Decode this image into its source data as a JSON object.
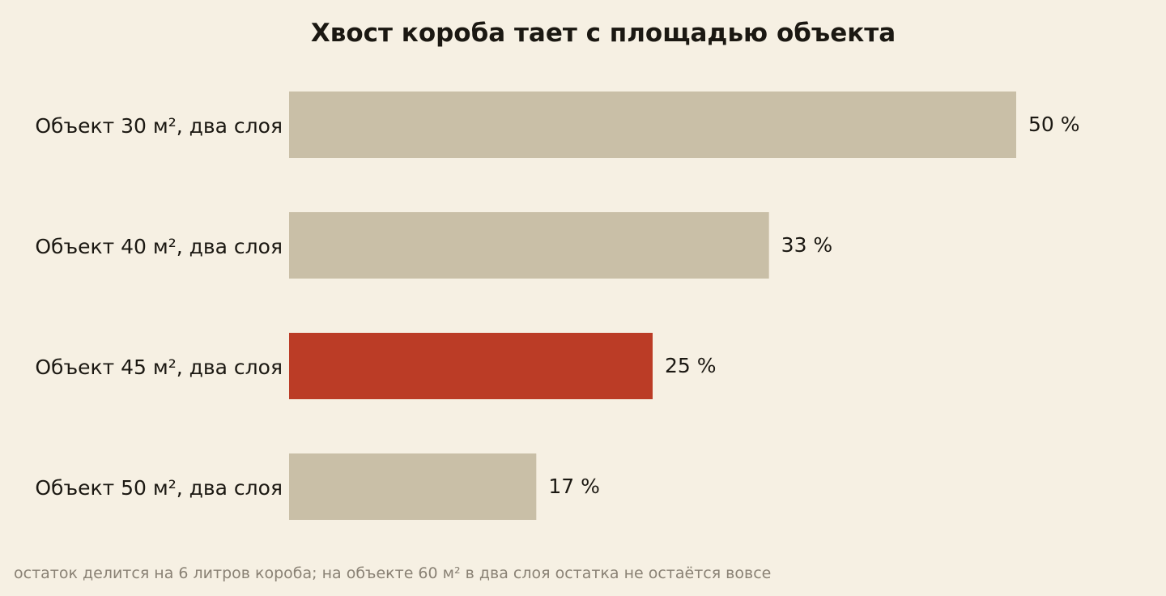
{
  "chart_data": {
    "type": "bar",
    "orientation": "horizontal",
    "title": "Хвост короба тает с площадью объекта",
    "categories": [
      "Объект 30 м², два слоя",
      "Объект 40 м², два слоя",
      "Объект 45 м², два слоя",
      "Объект 50 м², два слоя"
    ],
    "values": [
      50,
      33,
      25,
      17
    ],
    "value_labels": [
      "50 %",
      "33 %",
      "25 %",
      "17 %"
    ],
    "highlight_index": 2,
    "xlim": [
      0,
      50
    ],
    "grid": false,
    "footnote": "остаток делится на 6 литров короба; на объекте 60 м² в два слоя остатка не остаётся вовсе"
  },
  "colors": {
    "background": "#f6f0e3",
    "bar": "#c9bfa7",
    "highlight": "#bb3c26",
    "text": "#1b1812",
    "muted": "#8a8275"
  }
}
